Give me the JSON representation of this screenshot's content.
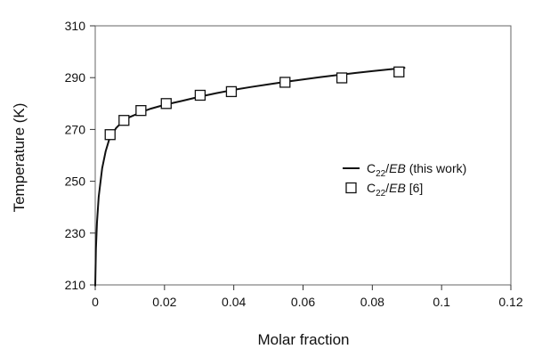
{
  "chart_data": {
    "type": "line",
    "xlabel": "Molar fraction",
    "ylabel": "Temperature (K)",
    "xlim": [
      0,
      0.12
    ],
    "ylim": [
      210,
      310
    ],
    "xticks": [
      "0",
      "0.02",
      "0.04",
      "0.06",
      "0.08",
      "0.1",
      "0.12"
    ],
    "yticks": [
      "210",
      "230",
      "250",
      "270",
      "290",
      "310"
    ],
    "grid": false,
    "legend_position": "right",
    "series": [
      {
        "name": "C22/EB (this work)",
        "kind": "line",
        "x": [
          0,
          0.0002,
          0.0005,
          0.001,
          0.002,
          0.003,
          0.004,
          0.006,
          0.008,
          0.01,
          0.013,
          0.016,
          0.02,
          0.025,
          0.03,
          0.035,
          0.04,
          0.045,
          0.05,
          0.055,
          0.06,
          0.065,
          0.07,
          0.075,
          0.08,
          0.085,
          0.0895
        ],
        "y": [
          209.5,
          224,
          234,
          244,
          255,
          261.5,
          266,
          270.5,
          273.2,
          274.8,
          276.5,
          278.0,
          279.5,
          281.0,
          282.6,
          284.0,
          285.3,
          286.4,
          287.4,
          288.4,
          289.3,
          290.2,
          291.0,
          291.8,
          292.5,
          293.2,
          293.8
        ]
      },
      {
        "name": "C22/EB [6]",
        "kind": "scatter",
        "marker": "open-square",
        "x": [
          0.0043,
          0.0083,
          0.0132,
          0.0205,
          0.0303,
          0.0393,
          0.0548,
          0.0712,
          0.0877
        ],
        "y": [
          268.0,
          273.5,
          277.3,
          280.0,
          283.2,
          284.6,
          288.2,
          289.9,
          292.2
        ]
      }
    ],
    "legend": [
      {
        "series": 0,
        "base": "C",
        "sub": "22",
        "slash": "/",
        "ital": "EB",
        "rest": " (this work)"
      },
      {
        "series": 1,
        "base": "C",
        "sub": "22",
        "slash": "/",
        "ital": "EB",
        "rest": " [6]"
      }
    ]
  }
}
